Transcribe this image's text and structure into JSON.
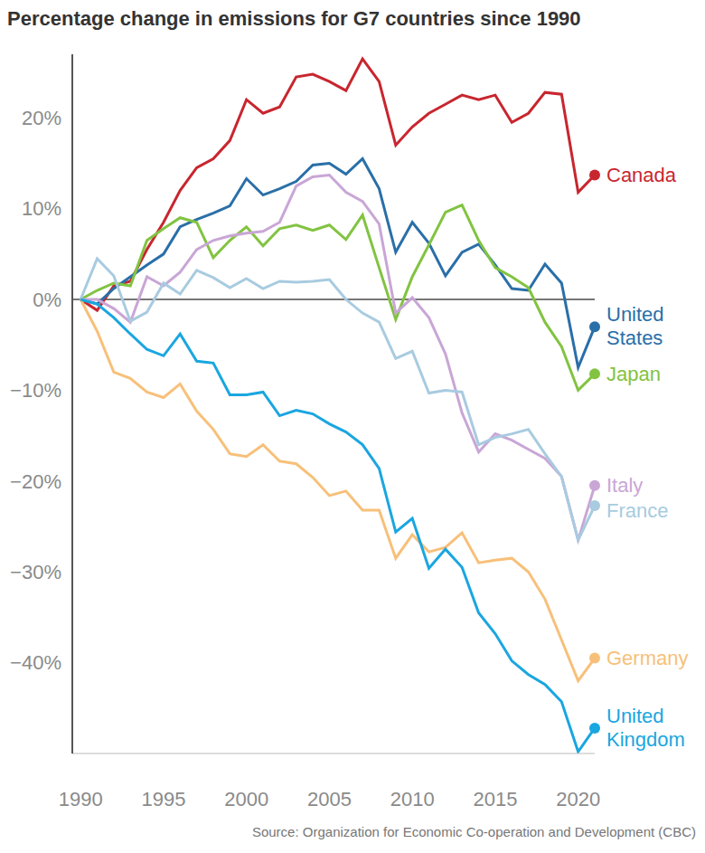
{
  "chart_data": {
    "type": "line",
    "title": "Percentage change in emissions for G7 countries since 1990",
    "source": "Source: Organization for Economic Co-operation and Development (CBC)",
    "x": [
      1990,
      1991,
      1992,
      1993,
      1994,
      1995,
      1996,
      1997,
      1998,
      1999,
      2000,
      2001,
      2002,
      2003,
      2004,
      2005,
      2006,
      2007,
      2008,
      2009,
      2010,
      2011,
      2012,
      2013,
      2014,
      2015,
      2016,
      2017,
      2018,
      2019,
      2020,
      2021
    ],
    "xlim": [
      1989.5,
      2021
    ],
    "xticks": [
      1990,
      1995,
      2000,
      2005,
      2010,
      2015,
      2020
    ],
    "ylim": [
      -50,
      27
    ],
    "yticks": [
      {
        "value": -40,
        "label": "−40%"
      },
      {
        "value": -30,
        "label": "−30%"
      },
      {
        "value": -20,
        "label": "−20%"
      },
      {
        "value": -10,
        "label": "−10%"
      },
      {
        "value": 0,
        "label": "0%"
      },
      {
        "value": 10,
        "label": "10%"
      },
      {
        "value": 20,
        "label": "20%"
      }
    ],
    "grid": false,
    "series": [
      {
        "name": "Canada",
        "color": "#c8262f",
        "values": [
          0,
          -1.2,
          1.5,
          2,
          5.5,
          8.5,
          12,
          14.5,
          15.5,
          17.5,
          22,
          20.5,
          21.2,
          24.5,
          24.8,
          24,
          23,
          26.5,
          24,
          17,
          19,
          20.5,
          21.5,
          22.5,
          22,
          22.5,
          19.5,
          20.5,
          22.8,
          22.6,
          11.8,
          13.7
        ]
      },
      {
        "name": "United States",
        "color": "#2a6fa8",
        "values": [
          0,
          -0.5,
          1.2,
          2.5,
          3.8,
          5,
          8,
          8.8,
          9.5,
          10.3,
          13.3,
          11.5,
          12.2,
          13,
          14.8,
          15,
          13.8,
          15.5,
          12.2,
          5.2,
          8.5,
          6.2,
          2.6,
          5.2,
          6.1,
          3.8,
          1.2,
          1,
          3.9,
          1.8,
          -7.5,
          -3
        ]
      },
      {
        "name": "Japan",
        "color": "#82c341",
        "values": [
          0,
          1,
          1.8,
          1.5,
          6.5,
          7.8,
          9,
          8.5,
          4.6,
          6.5,
          8,
          5.9,
          7.8,
          8.2,
          7.6,
          8.2,
          6.6,
          9.3,
          3.5,
          -2.2,
          2.5,
          6,
          9.6,
          10.4,
          6.5,
          3.5,
          2.5,
          1.3,
          -2.5,
          -5.2,
          -10,
          -8.2
        ]
      },
      {
        "name": "Italy",
        "color": "#c9a6d6",
        "values": [
          0,
          0,
          -1,
          -2.5,
          2.5,
          1.5,
          3,
          5.5,
          6.5,
          7,
          7.3,
          7.5,
          8.5,
          12.5,
          13.5,
          13.7,
          11.8,
          10.8,
          8.3,
          -1.5,
          0.2,
          -2,
          -6,
          -12.5,
          -16.8,
          -14.8,
          -15.5,
          -16.5,
          -17.5,
          -19.5,
          -26.5,
          -20.5
        ]
      },
      {
        "name": "France",
        "color": "#a8cbe0",
        "values": [
          0,
          4.5,
          2.6,
          -2.4,
          -1.4,
          1.8,
          0.6,
          3.2,
          2.4,
          1.3,
          2.3,
          1.2,
          2,
          1.9,
          2,
          2.2,
          0,
          -1.5,
          -2.5,
          -6.5,
          -5.7,
          -10.3,
          -10,
          -10.2,
          -16,
          -15.2,
          -14.8,
          -14.3,
          -17,
          -19.5,
          -26.5,
          -22.7
        ]
      },
      {
        "name": "Germany",
        "color": "#f7c07a",
        "values": [
          0,
          -3.5,
          -8,
          -8.7,
          -10.2,
          -10.8,
          -9.3,
          -12.3,
          -14.3,
          -17,
          -17.3,
          -16,
          -17.8,
          -18.1,
          -19.6,
          -21.6,
          -21.1,
          -23.2,
          -23.2,
          -28.5,
          -25.9,
          -27.8,
          -27.3,
          -25.7,
          -29,
          -28.7,
          -28.5,
          -30,
          -33,
          -37.5,
          -42,
          -39.5
        ]
      },
      {
        "name": "United Kingdom",
        "color": "#1aa6e0",
        "values": [
          0,
          -0.5,
          -2,
          -3.8,
          -5.5,
          -6.2,
          -3.8,
          -6.8,
          -7,
          -10.5,
          -10.5,
          -10.2,
          -12.8,
          -12.2,
          -12.6,
          -13.7,
          -14.6,
          -16,
          -18.6,
          -25.6,
          -24.1,
          -29.6,
          -27.5,
          -29.5,
          -34.5,
          -36.8,
          -39.8,
          -41.3,
          -42.4,
          -44.3,
          -49.8,
          -47.2
        ]
      }
    ]
  }
}
